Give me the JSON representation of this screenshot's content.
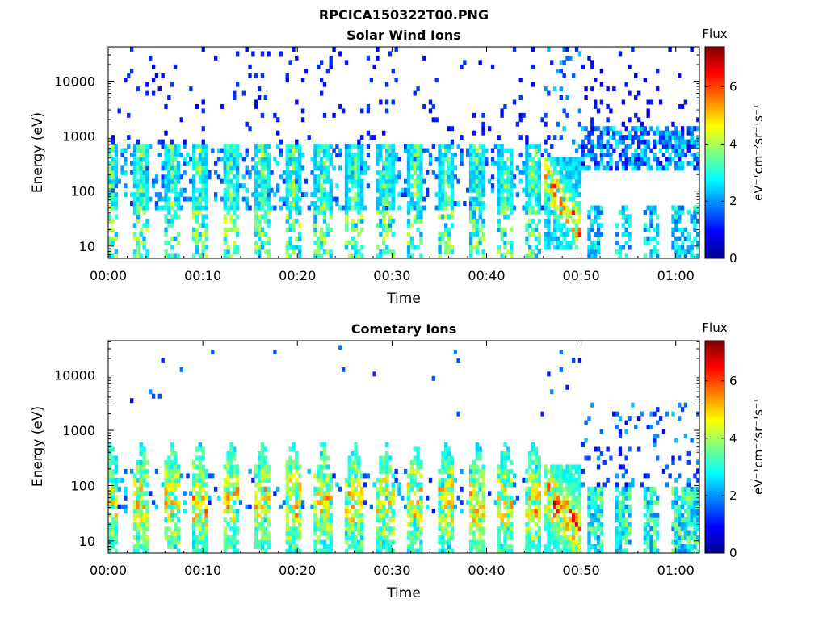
{
  "figure": {
    "filename": "RPCICA150322T00.PNG"
  },
  "panels": [
    {
      "id": "solar",
      "title": "Solar Wind Ions",
      "colorbar_title": "Flux"
    },
    {
      "id": "cometary",
      "title": "Cometary Ions",
      "colorbar_title": "Flux"
    }
  ],
  "chart_data": [
    {
      "type": "heatmap",
      "title": "Solar Wind Ions",
      "xlabel": "Time",
      "ylabel": "Energy (eV)",
      "x_ticks": [
        "00:00",
        "00:10",
        "00:20",
        "00:30",
        "00:40",
        "00:50",
        "01:00"
      ],
      "x_tick_minutes": [
        0,
        10,
        20,
        30,
        40,
        50,
        60
      ],
      "xlim_minutes": [
        0,
        62.5
      ],
      "y_ticks": [
        "10",
        "100",
        "1000",
        "10000"
      ],
      "y_tick_values": [
        10,
        100,
        1000,
        10000
      ],
      "ylim": [
        6,
        42000
      ],
      "y_scale": "log",
      "colorbar": {
        "label": "eV⁻¹cm⁻²sr⁻¹s⁻¹",
        "title": "Flux",
        "ticks": [
          0,
          2,
          4,
          6
        ],
        "range": [
          0,
          7.4
        ],
        "colormap": "jet"
      },
      "bursts_minutes": [
        0.3,
        3.5,
        6.7,
        9.7,
        13.0,
        16.3,
        19.5,
        22.7,
        26.0,
        29.3,
        32.5,
        35.8,
        39.0,
        42.0,
        45.0,
        47.5,
        48.5,
        51.5,
        54.5,
        57.5,
        60.5,
        62.0
      ],
      "features": [
        {
          "minute_range": [
            0,
            18
          ],
          "energy_range": [
            60,
            600
          ],
          "peak_flux": 4.5
        },
        {
          "minute_range": [
            18,
            46
          ],
          "energy_range": [
            60,
            700
          ],
          "peak_flux": 3.5
        },
        {
          "minute_range": [
            46,
            50
          ],
          "energy_range": [
            8,
            300
          ],
          "peak_flux": 6.5
        },
        {
          "minute_range": [
            50,
            62.5
          ],
          "energy_range": [
            300,
            1200
          ],
          "peak_flux": 2.0
        }
      ]
    },
    {
      "type": "heatmap",
      "title": "Cometary Ions",
      "xlabel": "Time",
      "ylabel": "Energy (eV)",
      "x_ticks": [
        "00:00",
        "00:10",
        "00:20",
        "00:30",
        "00:40",
        "00:50",
        "01:00"
      ],
      "x_tick_minutes": [
        0,
        10,
        20,
        30,
        40,
        50,
        60
      ],
      "xlim_minutes": [
        0,
        62.5
      ],
      "y_ticks": [
        "10",
        "100",
        "1000",
        "10000"
      ],
      "y_tick_values": [
        10,
        100,
        1000,
        10000
      ],
      "ylim": [
        6,
        42000
      ],
      "y_scale": "log",
      "colorbar": {
        "label": "eV⁻¹cm⁻²sr⁻¹s⁻¹",
        "title": "Flux",
        "ticks": [
          0,
          2,
          4,
          6
        ],
        "range": [
          0,
          7.4
        ],
        "colormap": "jet"
      },
      "bursts_minutes": [
        0.3,
        3.5,
        6.7,
        9.7,
        13.0,
        16.3,
        19.5,
        22.7,
        26.0,
        29.3,
        32.5,
        35.8,
        39.0,
        42.0,
        45.0,
        47.5,
        48.5,
        51.5,
        54.5,
        57.5,
        60.5,
        62.0
      ],
      "features": [
        {
          "minute_range": [
            0,
            46
          ],
          "energy_range": [
            8,
            400
          ],
          "peak_flux": 5.0
        },
        {
          "minute_range": [
            46,
            50
          ],
          "energy_range": [
            8,
            200
          ],
          "peak_flux": 6.8
        },
        {
          "minute_range": [
            50,
            62.5
          ],
          "energy_range": [
            8,
            100
          ],
          "peak_flux": 3.5
        }
      ]
    }
  ]
}
